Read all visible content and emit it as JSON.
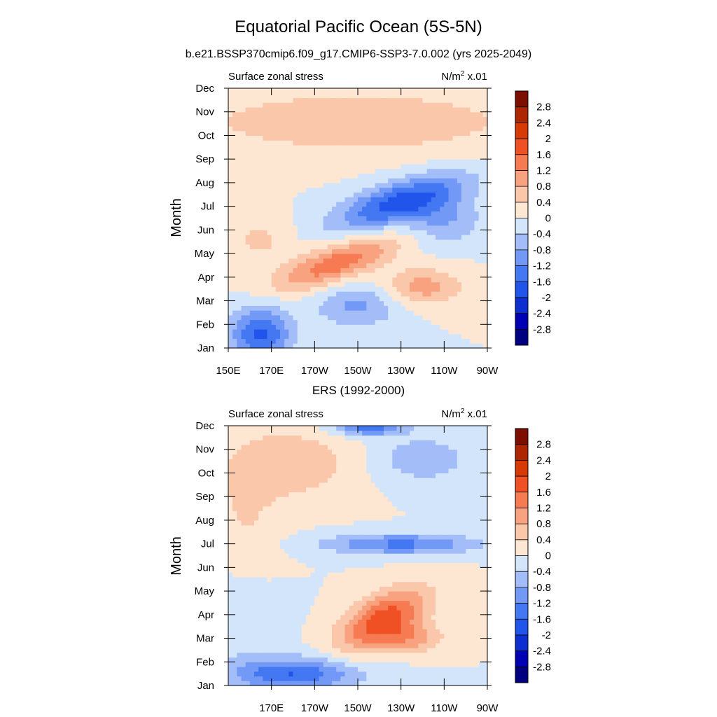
{
  "title": "Equatorial Pacific Ocean (5S-5N)",
  "subtitle": "b.e21.BSSP370cmip6.f09_g17.CMIP6-SSP3-7.0.002 (yrs 2025-2049)",
  "colorbar": {
    "colors": [
      "#000080",
      "#0000b4",
      "#0d2fd1",
      "#2154ea",
      "#4477f2",
      "#7299f6",
      "#a3bdf8",
      "#d3e5fb",
      "#fde6d2",
      "#fbc7ab",
      "#f8a27f",
      "#f67a52",
      "#f05124",
      "#d83a05",
      "#ad2600",
      "#7d0f00"
    ],
    "labels": [
      "-2.8",
      "-2.4",
      "-2",
      "-1.6",
      "-1.2",
      "-0.8",
      "-0.4",
      "0",
      "0.4",
      "0.8",
      "1.2",
      "1.6",
      "2",
      "2.4",
      "2.8"
    ]
  },
  "chart_data": [
    {
      "type": "heatmap",
      "left_label": "Surface zonal stress",
      "right_label": "N/m",
      "right_label_sup": "2",
      "right_label_suffix": " x.01",
      "ylabel": "Month",
      "title": "",
      "x_ticks": [
        "150E",
        "170E",
        "170W",
        "150W",
        "130W",
        "110W",
        "90W"
      ],
      "x_tick_values": [
        150,
        170,
        190,
        210,
        230,
        250,
        270
      ],
      "y_ticks": [
        "Jan",
        "Feb",
        "Mar",
        "Apr",
        "May",
        "Jun",
        "Jul",
        "Aug",
        "Sep",
        "Oct",
        "Nov",
        "Dec"
      ],
      "xlim": [
        150,
        270
      ],
      "ylim": [
        1,
        12
      ],
      "levels": [
        -2.8,
        -2.4,
        -2,
        -1.6,
        -1.2,
        -0.8,
        -0.4,
        0,
        0.4,
        0.8,
        1.2,
        1.6,
        2,
        2.4,
        2.8
      ],
      "features": [
        {
          "lon": 165,
          "month": 1.6,
          "amp": -1.7,
          "sx": 14,
          "sy": 1.2
        },
        {
          "lon": 210,
          "month": 2.8,
          "amp": -0.9,
          "sx": 20,
          "sy": 0.9
        },
        {
          "lon": 200,
          "month": 4.6,
          "amp": 1.5,
          "sx": 28,
          "sy": 0.8,
          "tilt": 0.03
        },
        {
          "lon": 240,
          "month": 3.6,
          "amp": 1.0,
          "sx": 18,
          "sy": 0.8
        },
        {
          "lon": 230,
          "month": 7.2,
          "amp": -1.8,
          "sx": 30,
          "sy": 0.9,
          "tilt": 0.025
        },
        {
          "lon": 250,
          "month": 6.4,
          "amp": -0.8,
          "sx": 18,
          "sy": 1.0
        },
        {
          "lon": 210,
          "month": 10.6,
          "amp": 0.7,
          "sx": 80,
          "sy": 1.4
        },
        {
          "lon": 165,
          "month": 5.6,
          "amp": 0.5,
          "sx": 15,
          "sy": 1.0
        }
      ]
    },
    {
      "type": "heatmap",
      "caption": "ERS (1992-2000)",
      "left_label": "Surface zonal stress",
      "right_label": "N/m",
      "right_label_sup": "2",
      "right_label_suffix": " x.01",
      "ylabel": "Month",
      "x_ticks": [
        "170E",
        "170W",
        "150W",
        "130W",
        "110W",
        "90W"
      ],
      "x_tick_values": [
        170,
        190,
        210,
        230,
        250,
        270
      ],
      "y_ticks": [
        "Jan",
        "Feb",
        "Mar",
        "Apr",
        "May",
        "Jun",
        "Jul",
        "Aug",
        "Sep",
        "Oct",
        "Nov",
        "Dec"
      ],
      "xlim": [
        150,
        270
      ],
      "ylim": [
        1,
        12
      ],
      "levels": [
        -2.8,
        -2.4,
        -2,
        -1.6,
        -1.2,
        -0.8,
        -0.4,
        0,
        0.4,
        0.8,
        1.2,
        1.6,
        2,
        2.4,
        2.8
      ],
      "features": [
        {
          "lon": 180,
          "month": 1.5,
          "amp": -1.6,
          "sx": 30,
          "sy": 0.7
        },
        {
          "lon": 222,
          "month": 3.8,
          "amp": 1.9,
          "sx": 20,
          "sy": 1.1,
          "tilt": 0.035
        },
        {
          "lon": 236,
          "month": 3.0,
          "amp": 0.9,
          "sx": 14,
          "sy": 0.6
        },
        {
          "lon": 230,
          "month": 7.0,
          "amp": -1.3,
          "sx": 36,
          "sy": 0.45
        },
        {
          "lon": 240,
          "month": 10.6,
          "amp": -0.7,
          "sx": 22,
          "sy": 1.0
        },
        {
          "lon": 215,
          "month": 12.0,
          "amp": -1.5,
          "sx": 16,
          "sy": 0.4
        },
        {
          "lon": 180,
          "month": 10.4,
          "amp": 0.7,
          "sx": 28,
          "sy": 1.5
        },
        {
          "lon": 158,
          "month": 8.0,
          "amp": 0.4,
          "sx": 16,
          "sy": 3.0
        },
        {
          "lon": 155,
          "month": 4.0,
          "amp": -0.4,
          "sx": 18,
          "sy": 2.0
        }
      ]
    }
  ]
}
